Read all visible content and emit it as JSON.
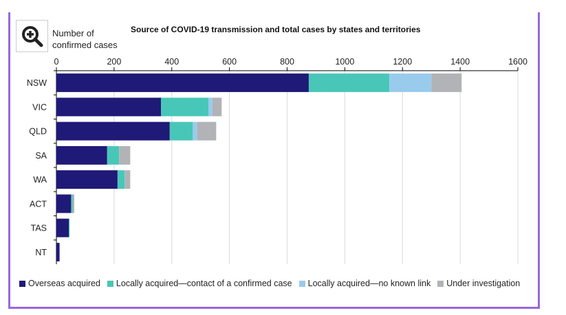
{
  "zoom_button": {
    "icon": "zoom-in-icon"
  },
  "chart_data": {
    "type": "bar",
    "orientation": "horizontal",
    "stacked": true,
    "title": "Source of COVID-19 transmission and total cases by states and territories",
    "xlabel": "Number of confirmed cases",
    "ylabel": "",
    "xlim": [
      0,
      1600
    ],
    "xticks": [
      "0",
      "200",
      "400",
      "600",
      "800",
      "1000",
      "1200",
      "1400",
      "1600"
    ],
    "grid": true,
    "legend_position": "bottom",
    "categories": [
      "NSW",
      "VIC",
      "QLD",
      "SA",
      "WA",
      "ACT",
      "TAS",
      "NT"
    ],
    "series": [
      {
        "name": "Overseas acquired",
        "color": "#1f1a78",
        "values": [
          875,
          363,
          393,
          176,
          212,
          51,
          43,
          11
        ]
      },
      {
        "name": "Locally acquired—contact of a confirmed case",
        "color": "#48c7b8",
        "values": [
          279,
          164,
          80,
          41,
          25,
          5,
          3,
          0
        ]
      },
      {
        "name": "Locally acquired—no known link",
        "color": "#99cbed",
        "values": [
          146,
          14,
          15,
          1,
          1,
          0,
          0,
          0
        ]
      },
      {
        "name": "Under investigation",
        "color": "#b1b3b6",
        "values": [
          105,
          32,
          66,
          38,
          18,
          6,
          0,
          0
        ]
      }
    ]
  }
}
